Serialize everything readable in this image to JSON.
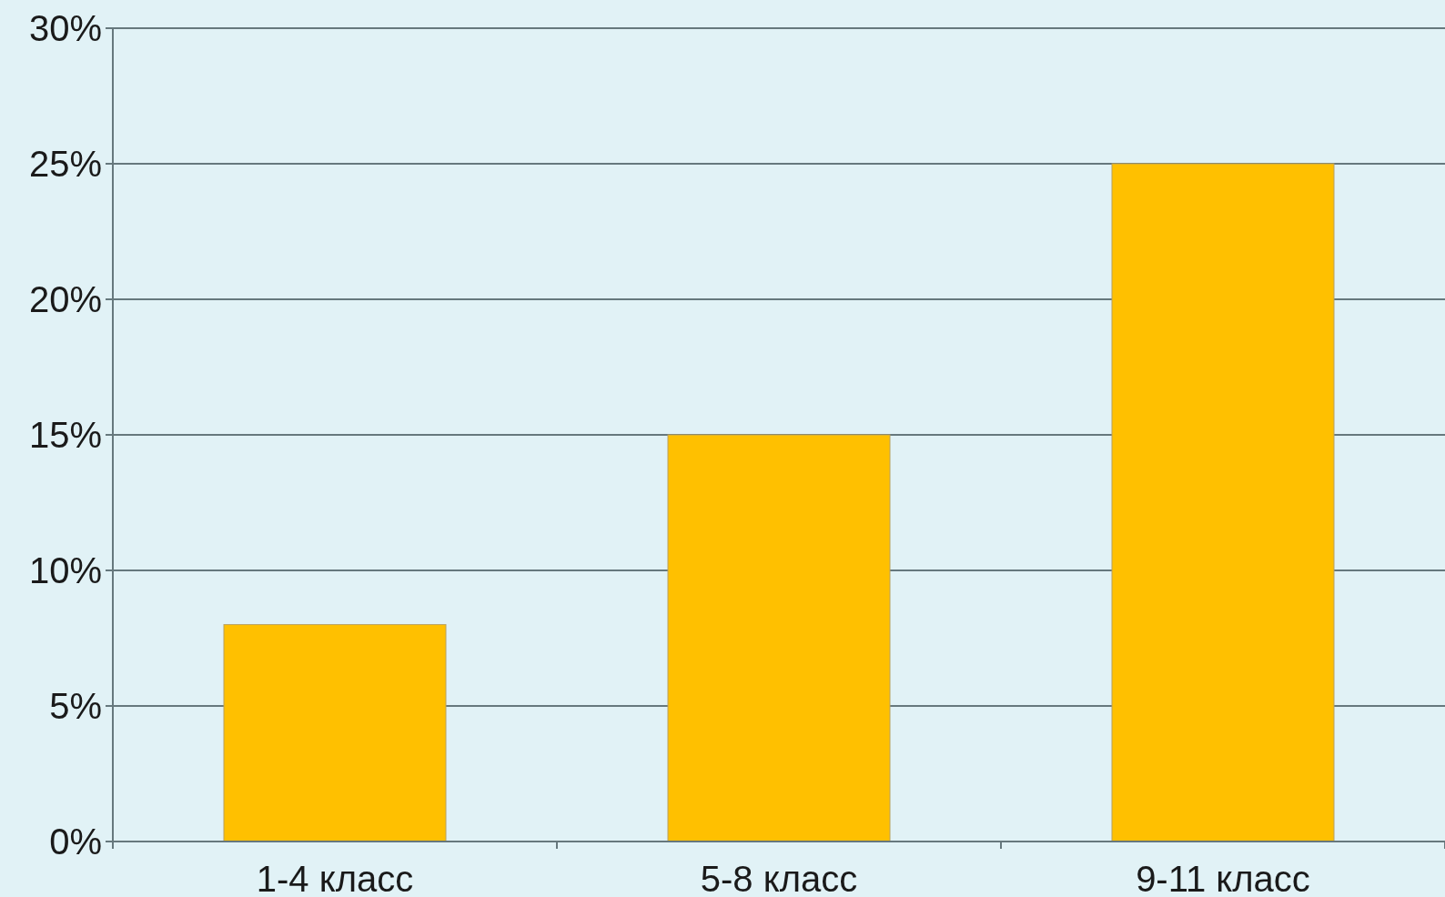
{
  "chart_data": {
    "type": "bar",
    "categories": [
      "1-4 класс",
      "5-8 класс",
      "9-11 класс"
    ],
    "values": [
      8,
      15,
      25
    ],
    "color": "#ffc000",
    "ylim": [
      0,
      30
    ],
    "yticks": [
      {
        "value": 0,
        "label": "0%"
      },
      {
        "value": 5,
        "label": "5%"
      },
      {
        "value": 10,
        "label": "10%"
      },
      {
        "value": 15,
        "label": "15%"
      },
      {
        "value": 20,
        "label": "20%"
      },
      {
        "value": 25,
        "label": "25%"
      },
      {
        "value": 30,
        "label": "30%"
      }
    ],
    "grid": "y"
  }
}
